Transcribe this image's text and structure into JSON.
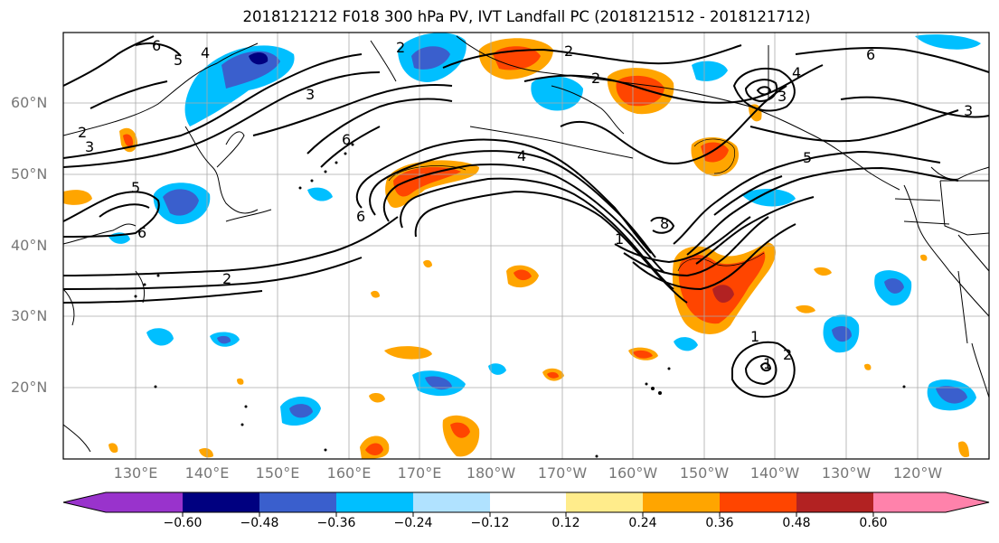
{
  "title": "2018121212 F018 300 hPa PV, IVT Landfall PC (2018121512 - 2018121712)",
  "map": {
    "lat_labels": [
      "60°N",
      "50°N",
      "40°N",
      "30°N",
      "20°N"
    ],
    "lon_labels": [
      "130°E",
      "140°E",
      "150°E",
      "160°E",
      "170°E",
      "180°W",
      "170°W",
      "160°W",
      "150°W",
      "140°W",
      "130°W",
      "120°W"
    ],
    "contour_labels": [
      "6",
      "5",
      "4",
      "2",
      "3",
      "2",
      "3",
      "6",
      "5",
      "6",
      "2",
      "2",
      "4",
      "6",
      "5",
      "3",
      "4",
      "1",
      "2",
      "3",
      "6",
      "8",
      "1",
      "1",
      "2"
    ]
  },
  "colorbar": {
    "tick_labels": [
      "−0.60",
      "−0.48",
      "−0.36",
      "−0.24",
      "−0.12",
      "0.12",
      "0.24",
      "0.36",
      "0.48",
      "0.60"
    ],
    "colors": [
      "#9933cc",
      "#000080",
      "#3a5fcd",
      "#00bfff",
      "#b0e2ff",
      "#ffffff",
      "#ffec8b",
      "#ffa500",
      "#ff4500",
      "#b22222",
      "#ff82ab"
    ]
  }
}
